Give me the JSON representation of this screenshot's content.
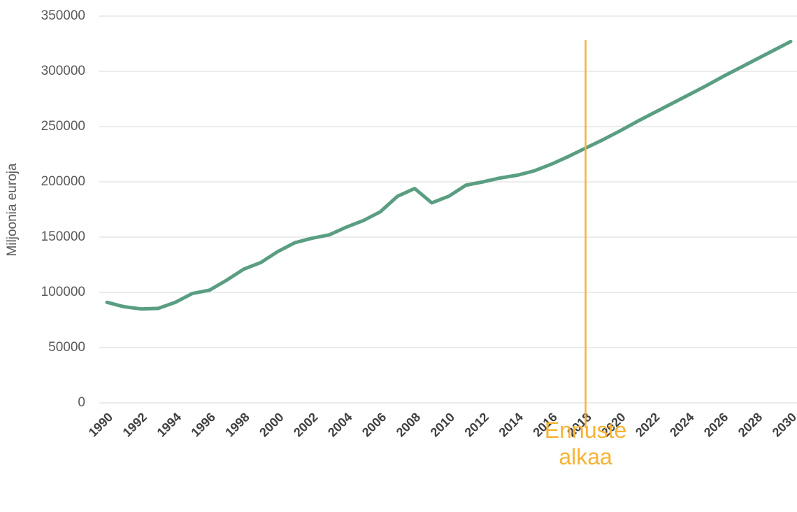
{
  "chart_data": {
    "type": "line",
    "y_label": "Miljoonia euroja",
    "x": [
      1990,
      1991,
      1992,
      1993,
      1994,
      1995,
      1996,
      1997,
      1998,
      1999,
      2000,
      2001,
      2002,
      2003,
      2004,
      2005,
      2006,
      2007,
      2008,
      2009,
      2010,
      2011,
      2012,
      2013,
      2014,
      2015,
      2016,
      2017,
      2018,
      2019,
      2020,
      2021,
      2022,
      2023,
      2024,
      2025,
      2026,
      2027,
      2028,
      2029,
      2030
    ],
    "values": [
      91000,
      87000,
      85000,
      85500,
      91000,
      99000,
      102000,
      111000,
      121000,
      127000,
      137000,
      145000,
      149000,
      152000,
      159000,
      165000,
      173000,
      187000,
      194000,
      181000,
      187000,
      197000,
      200000,
      203500,
      206000,
      210000,
      216000,
      223000,
      230500,
      238000,
      246000,
      254500,
      262500,
      270500,
      278500,
      286500,
      295000,
      303000,
      311000,
      319000,
      327000
    ],
    "color": "#5a9e82",
    "xlim": [
      1990,
      2030
    ],
    "xticks": [
      1990,
      1992,
      1994,
      1996,
      1998,
      2000,
      2002,
      2004,
      2006,
      2008,
      2010,
      2012,
      2014,
      2016,
      2018,
      2020,
      2022,
      2024,
      2026,
      2028,
      2030
    ],
    "ylim": [
      0,
      350000
    ],
    "yticks": [
      0,
      50000,
      100000,
      150000,
      200000,
      250000,
      300000,
      350000
    ],
    "grid": true,
    "annotation": {
      "x": 2018,
      "text": "Ennuste alkaa",
      "color": "#f5b335"
    }
  }
}
